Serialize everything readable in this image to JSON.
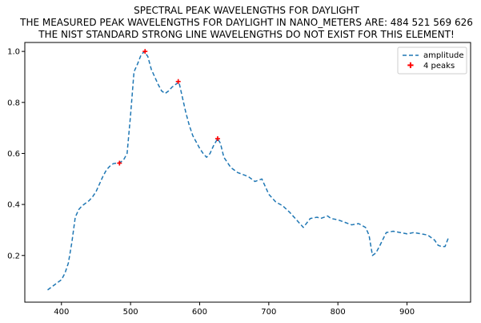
{
  "chart_data": {
    "type": "line",
    "title_lines": [
      "SPECTRAL PEAK WAVELENGTHS FOR DAYLIGHT",
      "THE MEASURED PEAK WAVELENGTHS FOR DAYLIGHT IN NANO_METERS ARE: 484 521 569 626",
      "THE NIST STANDARD STRONG LINE WAVELENGTHS DO NOT EXIST FOR THIS ELEMENT!"
    ],
    "xlabel": "",
    "ylabel": "",
    "xlim": [
      347,
      992
    ],
    "ylim": [
      0.017,
      1.035
    ],
    "x_ticks": [
      400,
      500,
      600,
      700,
      800,
      900
    ],
    "y_ticks": [
      0.2,
      0.4,
      0.6,
      0.8,
      1.0
    ],
    "x_tick_labels": [
      "400",
      "500",
      "600",
      "700",
      "800",
      "900"
    ],
    "y_tick_labels": [
      "0.2",
      "0.4",
      "0.6",
      "0.8",
      "1.0"
    ],
    "grid": false,
    "legend_position": "top-right",
    "series": [
      {
        "name": "amplitude",
        "style": "dashed",
        "color": "#1f77b4",
        "x": [
          380,
          385,
          390,
          395,
          400,
          405,
          410,
          415,
          420,
          425,
          430,
          435,
          440,
          445,
          450,
          455,
          460,
          465,
          470,
          475,
          480,
          485,
          490,
          495,
          500,
          505,
          510,
          515,
          520,
          525,
          530,
          535,
          540,
          545,
          550,
          555,
          560,
          565,
          570,
          575,
          580,
          585,
          590,
          595,
          600,
          605,
          610,
          615,
          620,
          626,
          630,
          635,
          640,
          645,
          650,
          655,
          660,
          670,
          680,
          690,
          700,
          710,
          720,
          730,
          740,
          750,
          760,
          770,
          775,
          780,
          785,
          790,
          800,
          810,
          820,
          830,
          840,
          845,
          850,
          855,
          860,
          870,
          880,
          890,
          900,
          910,
          920,
          930,
          940,
          945,
          950,
          955,
          960
        ],
        "values": [
          0.065,
          0.075,
          0.085,
          0.095,
          0.105,
          0.13,
          0.17,
          0.25,
          0.35,
          0.38,
          0.395,
          0.405,
          0.415,
          0.43,
          0.45,
          0.48,
          0.51,
          0.535,
          0.55,
          0.56,
          0.562,
          0.565,
          0.575,
          0.6,
          0.75,
          0.92,
          0.95,
          0.985,
          1.0,
          0.98,
          0.93,
          0.9,
          0.87,
          0.845,
          0.835,
          0.845,
          0.86,
          0.87,
          0.88,
          0.82,
          0.76,
          0.71,
          0.67,
          0.645,
          0.62,
          0.6,
          0.585,
          0.6,
          0.63,
          0.658,
          0.64,
          0.585,
          0.565,
          0.545,
          0.535,
          0.525,
          0.52,
          0.51,
          0.49,
          0.5,
          0.44,
          0.41,
          0.395,
          0.37,
          0.34,
          0.31,
          0.345,
          0.35,
          0.345,
          0.35,
          0.355,
          0.345,
          0.34,
          0.33,
          0.32,
          0.325,
          0.31,
          0.28,
          0.2,
          0.21,
          0.235,
          0.29,
          0.295,
          0.29,
          0.285,
          0.29,
          0.285,
          0.28,
          0.26,
          0.24,
          0.235,
          0.235,
          0.27
        ]
      },
      {
        "name": "4 peaks",
        "style": "markers",
        "color": "#ff0000",
        "x": [
          484,
          521,
          569,
          626
        ],
        "values": [
          0.562,
          1.0,
          0.882,
          0.658
        ]
      }
    ]
  }
}
